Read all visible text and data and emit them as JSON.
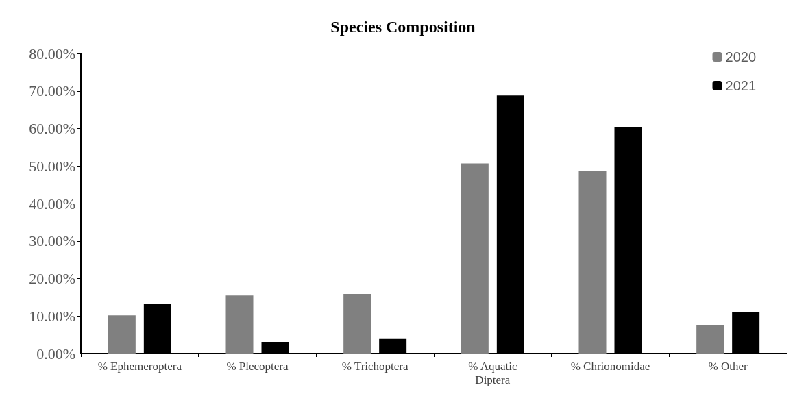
{
  "chart_data": {
    "type": "bar",
    "title": "Species Composition",
    "categories": [
      "% Ephemeroptera",
      "% Plecoptera",
      "% Trichoptera",
      "% Aquatic Diptera",
      "% Chrionomidae",
      "% Other"
    ],
    "series": [
      {
        "name": "2020",
        "color": "#808080",
        "values": [
          10.2,
          15.5,
          15.9,
          50.7,
          48.7,
          7.6
        ]
      },
      {
        "name": "2021",
        "color": "#000000",
        "values": [
          13.3,
          3.1,
          3.9,
          68.8,
          60.4,
          11.1
        ]
      }
    ],
    "ylim": [
      0,
      80
    ],
    "yticks": [
      {
        "value": 0,
        "label": "0.00%"
      },
      {
        "value": 10,
        "label": "10.00%"
      },
      {
        "value": 20,
        "label": "20.00%"
      },
      {
        "value": 30,
        "label": "30.00%"
      },
      {
        "value": 40,
        "label": "40.00%"
      },
      {
        "value": 50,
        "label": "50.00%"
      },
      {
        "value": 60,
        "label": "60.00%"
      },
      {
        "value": 70,
        "label": "70.00%"
      },
      {
        "value": 80,
        "label": "80.00%"
      }
    ],
    "grid": false,
    "legend": "top right"
  }
}
